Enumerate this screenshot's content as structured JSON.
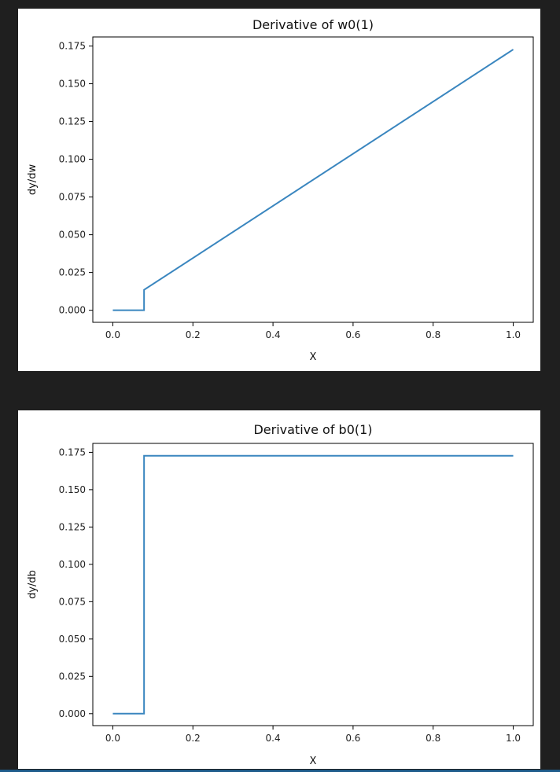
{
  "colors": {
    "page_background": "#1f1f1f",
    "panel_background": "#ffffff",
    "series_line": "#3a86bf",
    "bottom_accent": "#1e5b8a"
  },
  "chart_data": [
    {
      "type": "line",
      "title": "Derivative of w0(1)",
      "xlabel": "X",
      "ylabel": "dy/dw",
      "xlim": [
        -0.05,
        1.05
      ],
      "ylim": [
        -0.008,
        0.181
      ],
      "x_ticks": [
        0.0,
        0.2,
        0.4,
        0.6,
        0.8,
        1.0
      ],
      "x_tick_labels": [
        "0.0",
        "0.2",
        "0.4",
        "0.6",
        "0.8",
        "1.0"
      ],
      "y_ticks": [
        0.0,
        0.025,
        0.05,
        0.075,
        0.1,
        0.125,
        0.15,
        0.175
      ],
      "y_tick_labels": [
        "0.000",
        "0.025",
        "0.050",
        "0.075",
        "0.100",
        "0.125",
        "0.150",
        "0.175"
      ],
      "grid": false,
      "legend": "none",
      "series": [
        {
          "x": [
            0.0,
            0.078,
            0.078,
            1.0
          ],
          "y": [
            0.0,
            0.0,
            0.0135,
            0.1727
          ]
        }
      ]
    },
    {
      "type": "line",
      "title": "Derivative of b0(1)",
      "xlabel": "X",
      "ylabel": "dy/db",
      "xlim": [
        -0.05,
        1.05
      ],
      "ylim": [
        -0.008,
        0.181
      ],
      "x_ticks": [
        0.0,
        0.2,
        0.4,
        0.6,
        0.8,
        1.0
      ],
      "x_tick_labels": [
        "0.0",
        "0.2",
        "0.4",
        "0.6",
        "0.8",
        "1.0"
      ],
      "y_ticks": [
        0.0,
        0.025,
        0.05,
        0.075,
        0.1,
        0.125,
        0.15,
        0.175
      ],
      "y_tick_labels": [
        "0.000",
        "0.025",
        "0.050",
        "0.075",
        "0.100",
        "0.125",
        "0.150",
        "0.175"
      ],
      "grid": false,
      "legend": "none",
      "series": [
        {
          "x": [
            0.0,
            0.078,
            0.078,
            1.0
          ],
          "y": [
            0.0,
            0.0,
            0.1727,
            0.1727
          ]
        }
      ]
    }
  ]
}
